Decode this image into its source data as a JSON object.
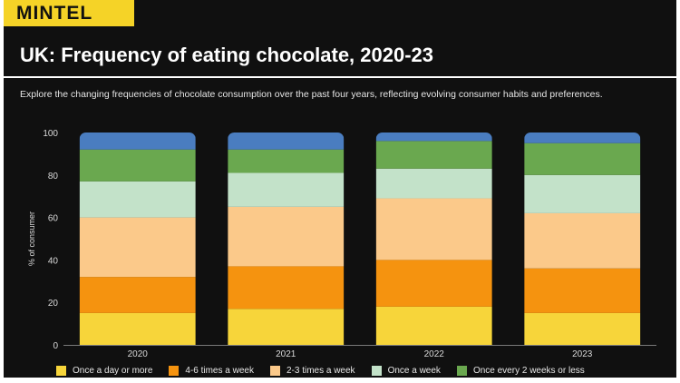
{
  "brand": {
    "logo_text": "MINTEL"
  },
  "header": {
    "title": "UK: Frequency of eating chocolate, 2020-23",
    "subtitle": "Explore the changing frequencies of chocolate consumption over the past four years, reflecting evolving consumer habits and preferences."
  },
  "chart_data": {
    "type": "bar",
    "stacked": true,
    "title": "UK: Frequency of eating chocolate, 2020-23",
    "xlabel": "",
    "ylabel": "% of consumer",
    "ylim": [
      0,
      100
    ],
    "yticks": [
      0,
      20,
      40,
      60,
      80,
      100
    ],
    "categories": [
      "2020",
      "2021",
      "2022",
      "2023"
    ],
    "series": [
      {
        "name": "Once a day or more",
        "color": "#f7d53a",
        "values": [
          15,
          17,
          18,
          15
        ]
      },
      {
        "name": "4-6 times a week",
        "color": "#f5930f",
        "values": [
          17,
          20,
          22,
          21
        ]
      },
      {
        "name": "2-3 times a week",
        "color": "#fbc98a",
        "values": [
          28,
          28,
          29,
          26
        ]
      },
      {
        "name": "Once a week",
        "color": "#c3e2c9",
        "values": [
          17,
          16,
          14,
          18
        ]
      },
      {
        "name": "Once every 2 weeks or less",
        "color": "#6aa84f",
        "values": [
          15,
          11,
          13,
          15
        ]
      },
      {
        "name": "",
        "color": "#4a7dc0",
        "values": [
          8,
          8,
          4,
          5
        ]
      }
    ],
    "legend_position": "bottom"
  }
}
